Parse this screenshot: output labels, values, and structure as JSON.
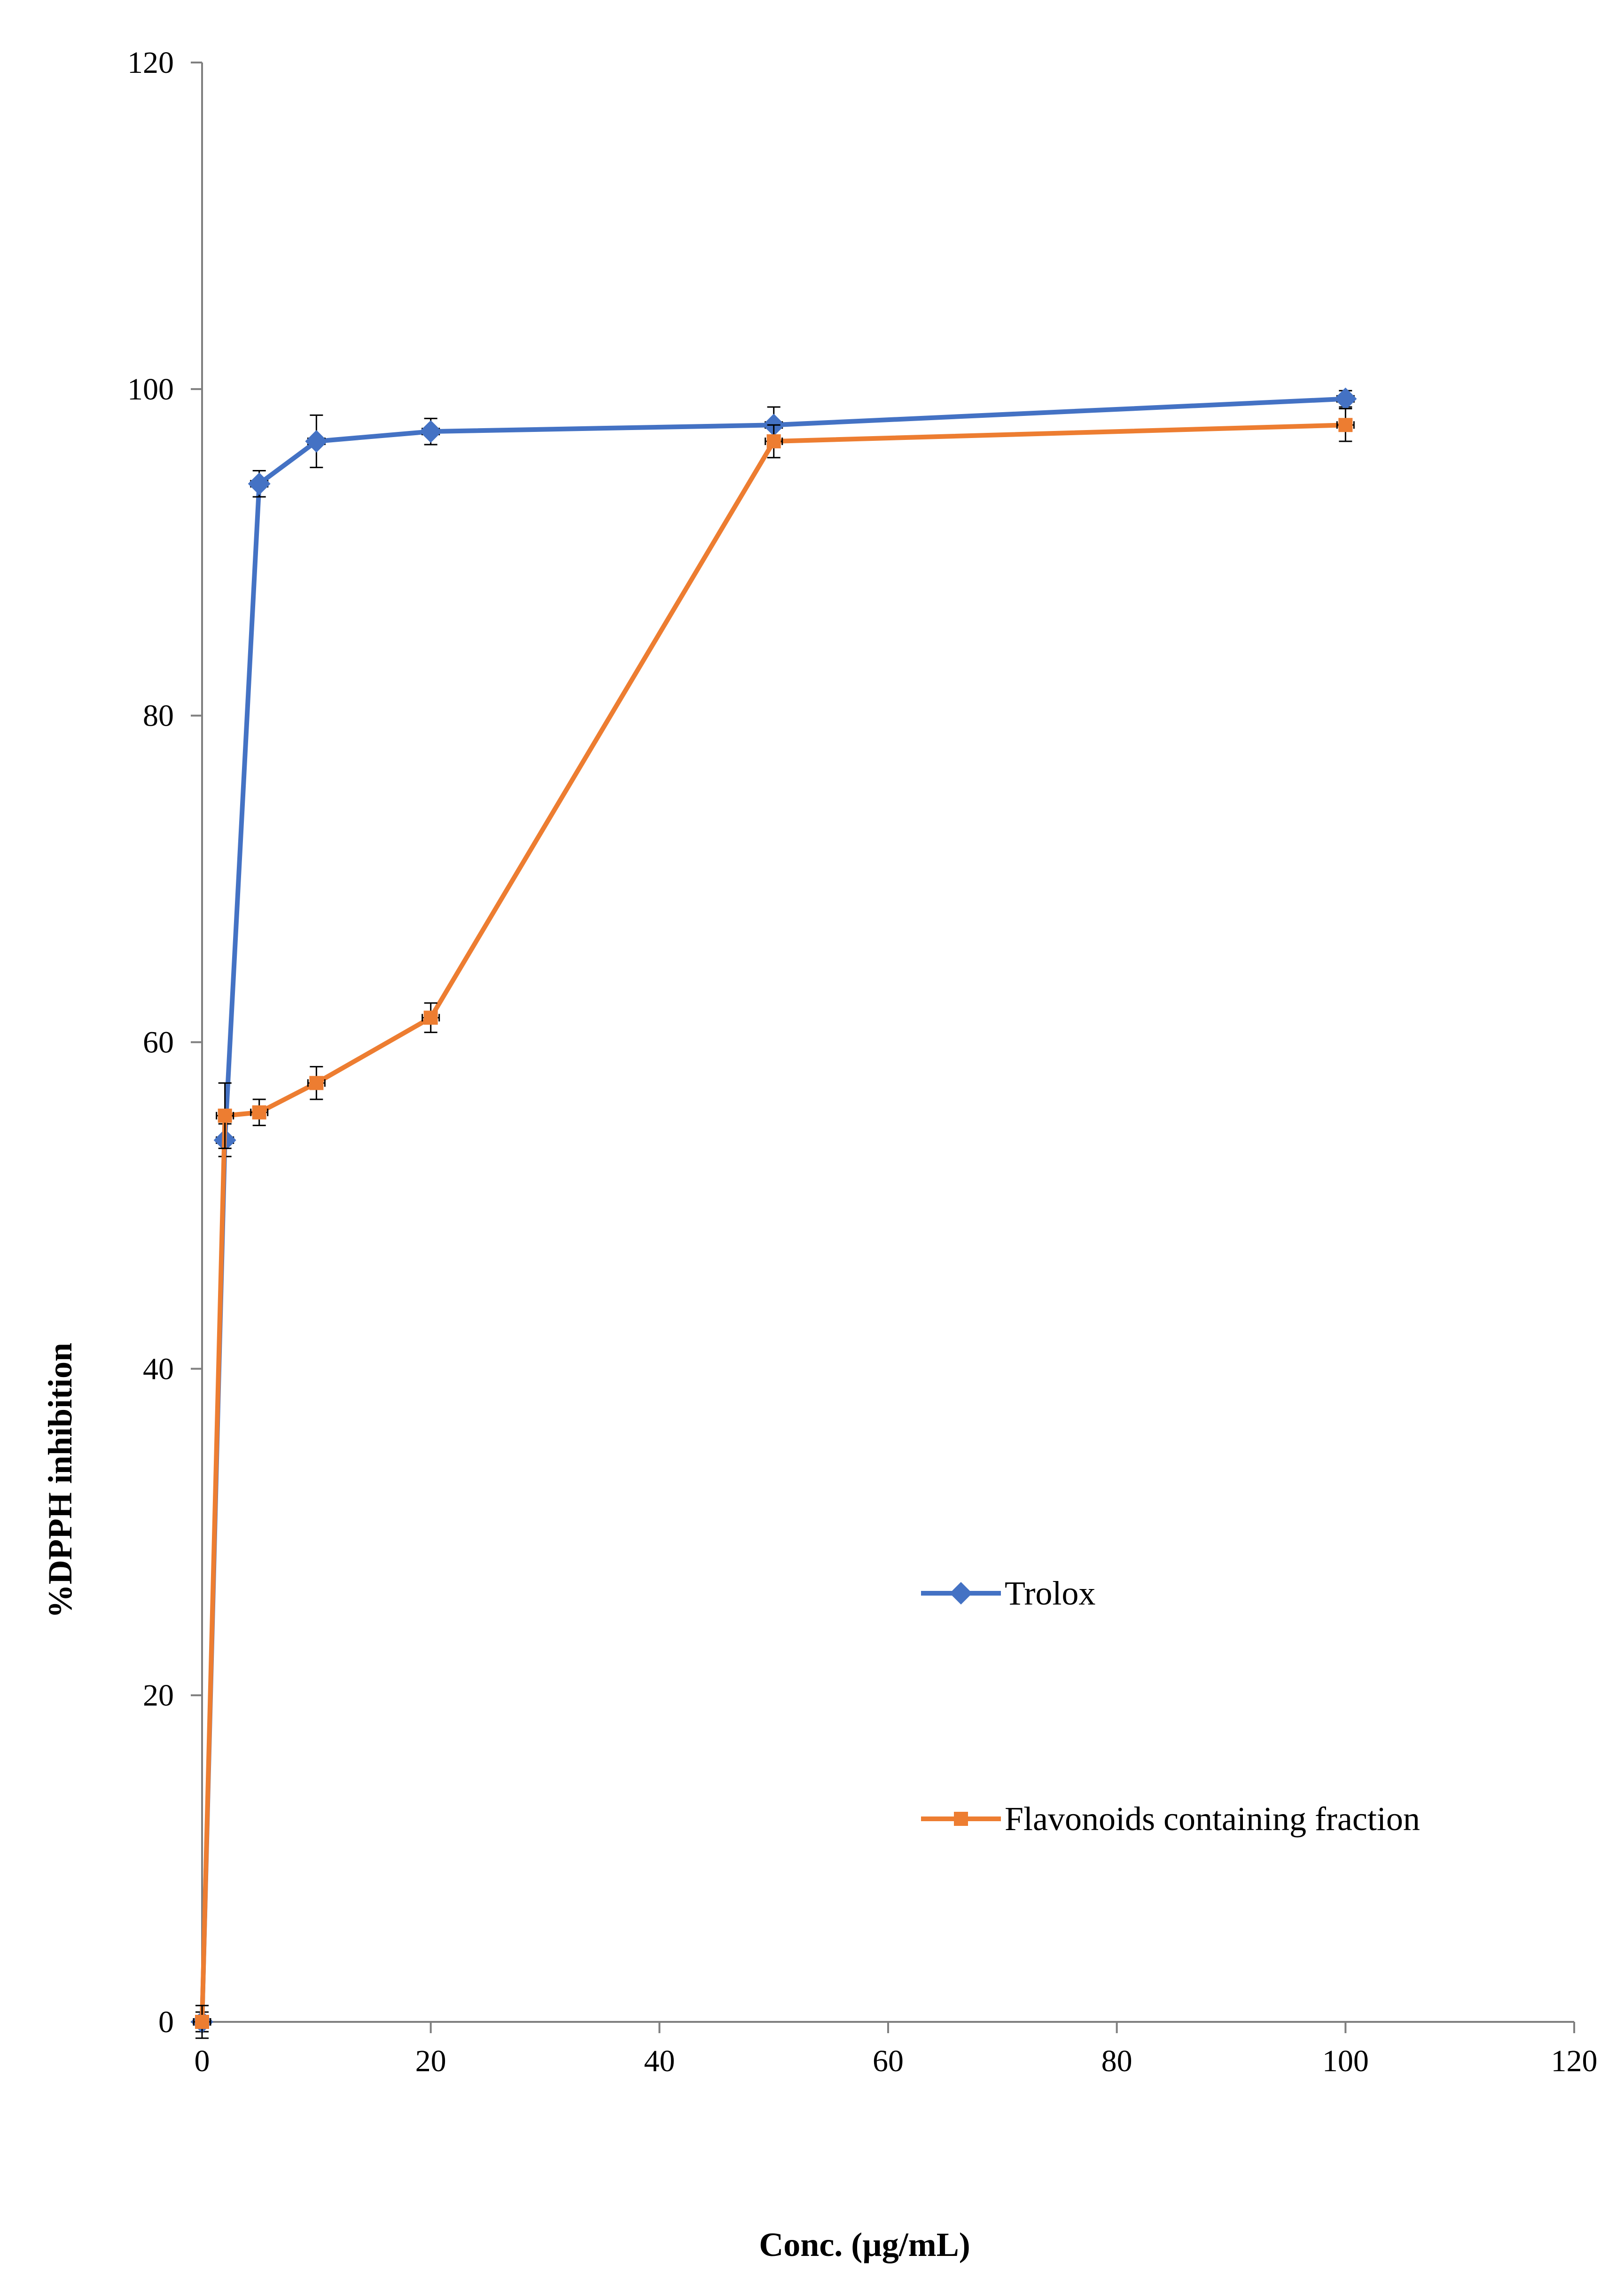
{
  "chart_data": {
    "type": "line",
    "title": "",
    "xlabel": "Conc. (µg/mL)",
    "ylabel": "%DPPH inhibition",
    "xlim": [
      0,
      120
    ],
    "ylim": [
      0,
      120
    ],
    "x_ticks": [
      0,
      20,
      40,
      60,
      80,
      100,
      120
    ],
    "y_ticks": [
      0,
      20,
      40,
      60,
      80,
      100,
      120
    ],
    "grid": false,
    "legend_position": "right",
    "series": [
      {
        "name": "Trolox",
        "color": "#4472C4",
        "marker": "diamond",
        "x": [
          0,
          2,
          5,
          10,
          20,
          50,
          100
        ],
        "y": [
          0,
          54,
          94.2,
          96.8,
          97.4,
          97.8,
          99.4
        ],
        "y_err": [
          0.6,
          1.0,
          0.8,
          1.6,
          0.8,
          1.1,
          0.5
        ]
      },
      {
        "name": "Flavonoids containing fraction",
        "color": "#ED7D31",
        "marker": "square",
        "x": [
          0,
          2,
          5,
          10,
          20,
          50,
          100
        ],
        "y": [
          0,
          55.5,
          55.7,
          57.5,
          61.5,
          96.8,
          97.8
        ],
        "y_err": [
          1.0,
          2.0,
          0.8,
          1.0,
          0.9,
          1.0,
          1.0
        ]
      }
    ]
  }
}
